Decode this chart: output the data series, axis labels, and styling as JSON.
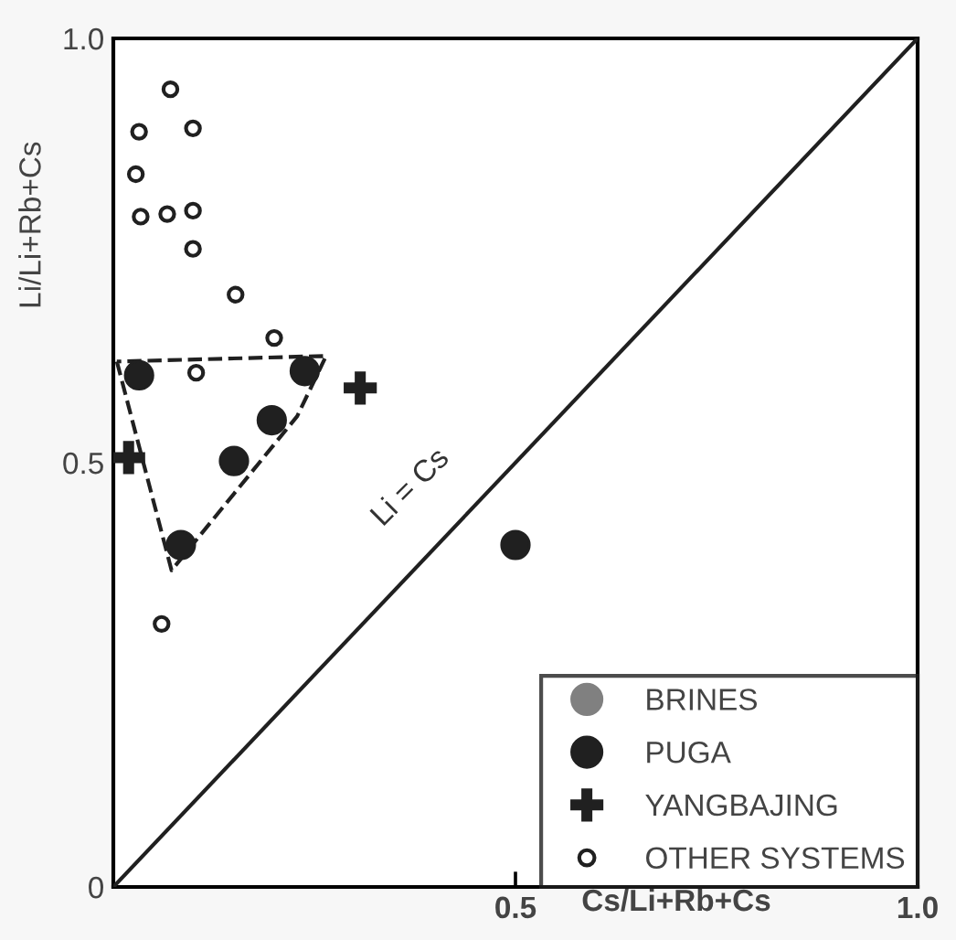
{
  "chart_data": {
    "type": "scatter",
    "xlabel": "Cs/Li+Rb+Cs",
    "ylabel": "Li/Li+Rb+Cs",
    "xlim": [
      0,
      1.0
    ],
    "ylim": [
      0,
      1.0
    ],
    "xticks": [
      {
        "value": 0,
        "label": null
      },
      {
        "value": 0.5,
        "label": "0.5"
      },
      {
        "value": 1.0,
        "label": "1.0"
      }
    ],
    "yticks": [
      {
        "value": 0,
        "label": "0"
      },
      {
        "value": 0.5,
        "label": "0.5"
      },
      {
        "value": 1.0,
        "label": "1.0"
      }
    ],
    "grid": false,
    "legend": "bottom right",
    "annotations": [
      "Li = Cs"
    ],
    "series": [
      {
        "name": "BRINES",
        "color": "#808080",
        "marker": "circle"
      },
      {
        "name": "PUGA",
        "color": "#202020",
        "marker": "circle",
        "x": [
          0.032,
          0.238,
          0.197,
          0.15,
          0.084,
          0.5
        ],
        "values": [
          0.603,
          0.608,
          0.55,
          0.502,
          0.403,
          0.403
        ]
      },
      {
        "name": "YANGBAJING",
        "color": "#202020",
        "marker": "cross",
        "x": [
          0.307,
          0.019
        ],
        "values": [
          0.588,
          0.506
        ]
      },
      {
        "name": "OTHER SYSTEMS",
        "color": "#202020",
        "marker": "circle",
        "x": [
          0.071,
          0.032,
          0.099,
          0.028,
          0.034,
          0.067,
          0.099,
          0.099,
          0.152,
          0.2,
          0.103,
          0.06
        ],
        "values": [
          0.94,
          0.89,
          0.894,
          0.84,
          0.79,
          0.793,
          0.797,
          0.752,
          0.698,
          0.647,
          0.606,
          0.31
        ]
      },
      {
        "type": "line",
        "color": "#202020",
        "line_style": "solid",
        "x": [
          0,
          1.0
        ],
        "values": [
          0,
          1.0
        ]
      }
    ]
  }
}
